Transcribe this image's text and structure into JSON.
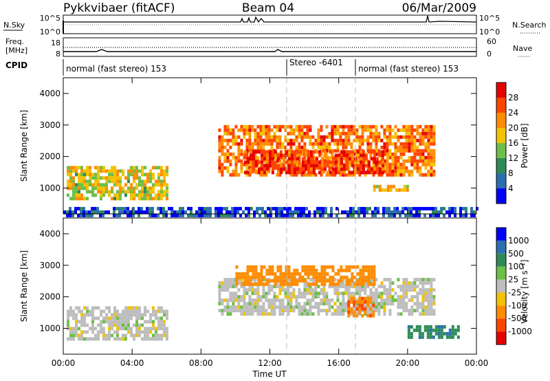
{
  "header": {
    "station": "Pykkvibaer (fitACF)",
    "beam": "Beam 04",
    "date": "06/Mar/2009"
  },
  "nsky_panel": {
    "left_label": "N.Sky",
    "right_label": "N.Search",
    "left_ticks": [
      "10^5",
      "10^0"
    ],
    "right_ticks": [
      "10^5",
      "10^0"
    ]
  },
  "freq_panel": {
    "left_label_line1": "Freq.",
    "left_label_line2": "[MHz]",
    "right_label": "Nave",
    "left_ticks": [
      "18",
      "8"
    ],
    "right_ticks": [
      "60",
      "0"
    ]
  },
  "cpid_panel": {
    "label": "CPID",
    "segments": [
      {
        "text": "normal (fast stereo) 153",
        "start_h": 0
      },
      {
        "text": "Stereo -6401",
        "start_h": 13
      },
      {
        "text": "normal (fast stereo) 153",
        "start_h": 17
      }
    ]
  },
  "colors": {
    "power_scale": [
      "#0000ff",
      "#2a6fb0",
      "#2e8b57",
      "#6cbf47",
      "#f2c200",
      "#ff8c00",
      "#ff4500",
      "#e60000"
    ],
    "velocity_scale": [
      "#e60000",
      "#ff4500",
      "#ff8c00",
      "#f2c200",
      "#bdbdbd",
      "#bdbdbd",
      "#6cbf47",
      "#2e8b57",
      "#2a6fb0",
      "#0000ff"
    ]
  },
  "chart_data": [
    {
      "type": "heatmap",
      "name": "power",
      "ylabel": "Slant Range [km]",
      "ylim": [
        180,
        4500
      ],
      "yticks": [
        "1000",
        "2000",
        "3000",
        "4000"
      ],
      "xlim": [
        0,
        24
      ],
      "xticks": [
        "00:00",
        "04:00",
        "08:00",
        "12:00",
        "16:00",
        "20:00",
        "00:00"
      ],
      "colorbar": {
        "label": "Power [dB]",
        "ticks": [
          "4",
          "8",
          "12",
          "16",
          "20",
          "24",
          "28"
        ],
        "range": [
          0,
          30
        ]
      },
      "regions": [
        {
          "t0": 0.2,
          "t1": 6.0,
          "r0": 700,
          "r1": 1700,
          "value": 16
        },
        {
          "t0": 9.0,
          "t1": 21.5,
          "r0": 1400,
          "r1": 3000,
          "value": 22
        },
        {
          "t0": 10.5,
          "t1": 18.5,
          "r0": 1500,
          "r1": 2200,
          "value": 26
        },
        {
          "t0": 18.0,
          "t1": 20.0,
          "r0": 900,
          "r1": 1100,
          "value": 18
        },
        {
          "t0": 0.0,
          "t1": 24.0,
          "r0": 180,
          "r1": 400,
          "value": 4
        }
      ]
    },
    {
      "type": "heatmap",
      "name": "velocity",
      "ylabel": "Slant Range [km]",
      "xlabel": "Time UT",
      "ylim": [
        180,
        4500
      ],
      "yticks": [
        "1000",
        "2000",
        "3000",
        "4000"
      ],
      "xlim": [
        0,
        24
      ],
      "xticks": [
        "00:00",
        "04:00",
        "08:00",
        "12:00",
        "16:00",
        "20:00",
        "00:00"
      ],
      "colorbar": {
        "label": "Velocity [m s⁻¹]",
        "ticks": [
          "1000",
          "500",
          "100",
          "25",
          "-25",
          "-100",
          "-500",
          "-1000"
        ]
      },
      "regions": [
        {
          "t0": 0.2,
          "t1": 6.0,
          "r0": 700,
          "r1": 1700,
          "value": 0
        },
        {
          "t0": 9.0,
          "t1": 21.5,
          "r0": 1400,
          "r1": 2600,
          "value": 0
        },
        {
          "t0": 10.0,
          "t1": 18.0,
          "r0": 2400,
          "r1": 3000,
          "value": -200
        },
        {
          "t0": 16.5,
          "t1": 18.0,
          "r0": 1400,
          "r1": 2000,
          "value": -300
        },
        {
          "t0": 20.0,
          "t1": 23.0,
          "r0": 700,
          "r1": 1100,
          "value": 300
        }
      ]
    }
  ]
}
